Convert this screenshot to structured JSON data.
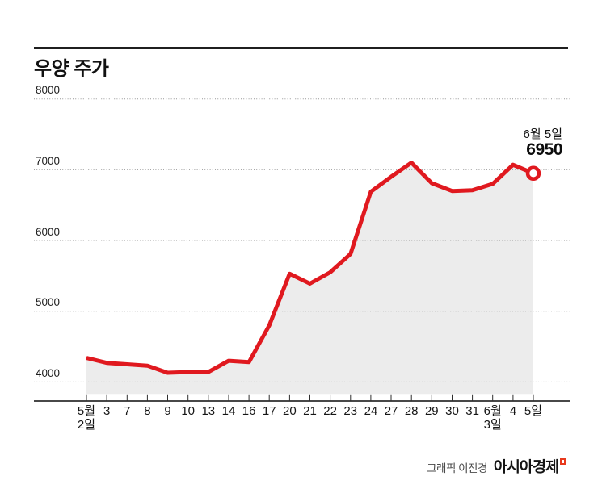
{
  "header": {
    "title": "우양 주가"
  },
  "annotation": {
    "date": "6월 5일",
    "value": "6950"
  },
  "footer": {
    "credit": "그래픽 이진경",
    "brand": "아시아경제"
  },
  "colors": {
    "line": "#e0191f",
    "area_fill": "#ececec",
    "grid": "#979797",
    "axis": "#2e2e2e",
    "marker_fill": "#ffffff",
    "logo_mark": "#e8391d",
    "text": "#111111"
  },
  "chart_data": {
    "type": "line",
    "title": "우양 주가",
    "xlabel": "",
    "ylabel": "",
    "categories": [
      "5월\n2일",
      "3",
      "7",
      "8",
      "9",
      "10",
      "13",
      "14",
      "16",
      "17",
      "20",
      "21",
      "22",
      "23",
      "24",
      "27",
      "28",
      "29",
      "30",
      "31",
      "6월\n3일",
      "4",
      "5일"
    ],
    "values": [
      4340,
      4270,
      4250,
      4230,
      4130,
      4140,
      4140,
      4300,
      4280,
      4800,
      5530,
      5390,
      5550,
      5810,
      6690,
      6900,
      7100,
      6810,
      6700,
      6710,
      6800,
      7070,
      6950
    ],
    "yticks": [
      8000,
      7000,
      6000,
      5000,
      4000
    ],
    "ylim": [
      3830,
      8000
    ],
    "grid": "horizontal-dotted",
    "legend": "none",
    "area_filled": true,
    "last_point": {
      "category": "5일",
      "value": 6950,
      "label_date": "6월 5일",
      "label_value": "6950",
      "marker": "open-circle"
    }
  }
}
